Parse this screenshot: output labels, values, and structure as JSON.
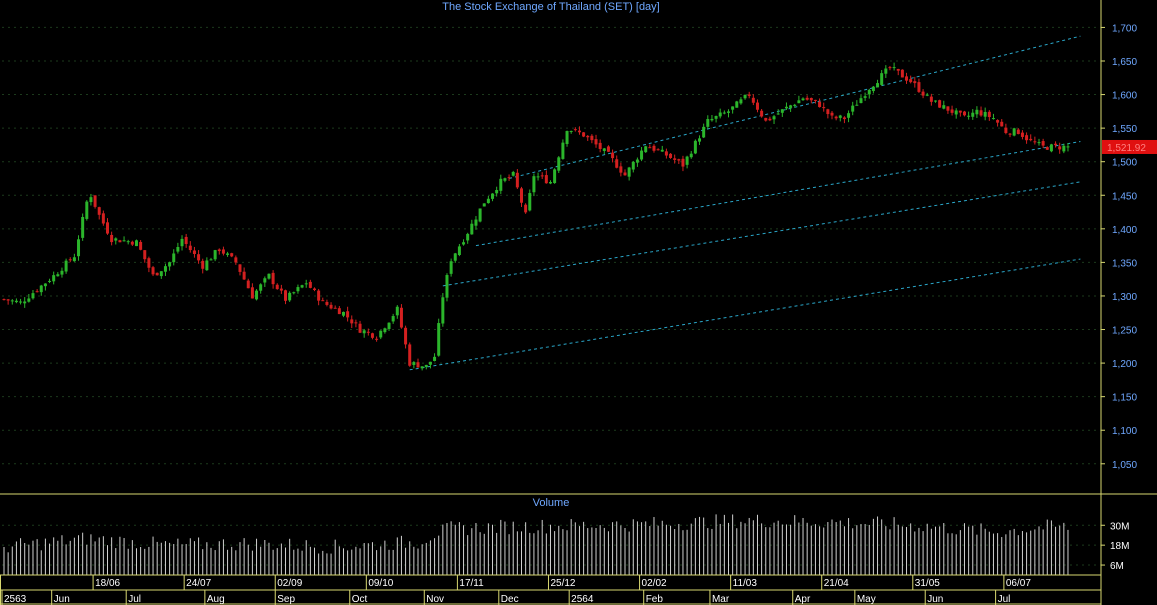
{
  "colors": {
    "background": "#000000",
    "axis_line": "#d8d870",
    "grid": "#1c3a1c",
    "text": "#6fa8ff",
    "label_text": "#ffffff",
    "up": "#2bb52b",
    "down": "#d42020",
    "channel": "#2aa6c8",
    "price_tag": "#e01010",
    "volume_bar": "#d0d0d0"
  },
  "chart_data": [
    {
      "type": "candlestick",
      "title": "The Stock Exchange of Thailand (SET) [day]",
      "ylim": [
        1005,
        1720
      ],
      "yticks": [
        1050,
        1100,
        1150,
        1200,
        1250,
        1300,
        1350,
        1400,
        1450,
        1500,
        1550,
        1600,
        1650,
        1700
      ],
      "ytick_labels": [
        "1,050",
        "1,100",
        "1,150",
        "1,200",
        "1,250",
        "1,300",
        "1,350",
        "1,400",
        "1,450",
        "1,500",
        "1,550",
        "1,600",
        "1,650",
        "1,700"
      ],
      "last_price": 1521.92,
      "last_price_label": "1,521.92",
      "n_days": 258,
      "close_anchors": [
        [
          0,
          1295
        ],
        [
          4,
          1290
        ],
        [
          12,
          1330
        ],
        [
          17,
          1360
        ],
        [
          20,
          1440
        ],
        [
          21,
          1450
        ],
        [
          23,
          1420
        ],
        [
          26,
          1385
        ],
        [
          32,
          1380
        ],
        [
          36,
          1330
        ],
        [
          40,
          1350
        ],
        [
          43,
          1385
        ],
        [
          48,
          1345
        ],
        [
          52,
          1370
        ],
        [
          56,
          1350
        ],
        [
          60,
          1300
        ],
        [
          64,
          1330
        ],
        [
          68,
          1295
        ],
        [
          73,
          1320
        ],
        [
          77,
          1290
        ],
        [
          82,
          1275
        ],
        [
          86,
          1250
        ],
        [
          90,
          1240
        ],
        [
          95,
          1280
        ],
        [
          98,
          1200
        ],
        [
          102,
          1195
        ],
        [
          104,
          1210
        ],
        [
          106,
          1300
        ],
        [
          108,
          1355
        ],
        [
          112,
          1395
        ],
        [
          116,
          1440
        ],
        [
          120,
          1470
        ],
        [
          123,
          1480
        ],
        [
          126,
          1420
        ],
        [
          128,
          1480
        ],
        [
          132,
          1470
        ],
        [
          136,
          1550
        ],
        [
          140,
          1540
        ],
        [
          146,
          1510
        ],
        [
          150,
          1480
        ],
        [
          155,
          1525
        ],
        [
          160,
          1510
        ],
        [
          164,
          1495
        ],
        [
          170,
          1560
        ],
        [
          175,
          1575
        ],
        [
          180,
          1600
        ],
        [
          184,
          1560
        ],
        [
          189,
          1580
        ],
        [
          193,
          1595
        ],
        [
          197,
          1585
        ],
        [
          200,
          1565
        ],
        [
          203,
          1565
        ],
        [
          209,
          1610
        ],
        [
          214,
          1640
        ],
        [
          219,
          1620
        ],
        [
          224,
          1590
        ],
        [
          229,
          1575
        ],
        [
          232,
          1565
        ],
        [
          235,
          1575
        ],
        [
          239,
          1565
        ],
        [
          242,
          1545
        ],
        [
          245,
          1545
        ],
        [
          248,
          1530
        ],
        [
          251,
          1522
        ]
      ],
      "channel_lines": [
        {
          "from": [
            1,
            1190
          ],
          "to": [
            260,
            1355
          ]
        },
        {
          "from": [
            10,
            1315
          ],
          "to": [
            260,
            1470
          ]
        },
        {
          "from": [
            38,
            1375
          ],
          "to": [
            260,
            1530
          ]
        },
        {
          "from": [
            37,
            1475
          ],
          "to": [
            260,
            1687
          ]
        }
      ]
    },
    {
      "type": "bar",
      "title": "Volume",
      "ylim": [
        0,
        38
      ],
      "yticks": [
        6,
        18,
        30
      ],
      "ytick_labels": [
        "6M",
        "18M",
        "30M"
      ],
      "volume_anchors": [
        [
          0,
          17
        ],
        [
          20,
          22
        ],
        [
          40,
          18
        ],
        [
          60,
          19
        ],
        [
          80,
          17
        ],
        [
          100,
          20
        ],
        [
          104,
          25
        ],
        [
          108,
          28
        ],
        [
          120,
          29
        ],
        [
          140,
          30
        ],
        [
          160,
          31
        ],
        [
          180,
          33
        ],
        [
          200,
          32
        ],
        [
          220,
          30
        ],
        [
          240,
          26
        ],
        [
          251,
          29
        ]
      ]
    }
  ],
  "x_axis": {
    "date_labels": [
      {
        "text": "18/06",
        "day": 22
      },
      {
        "text": "24/07",
        "day": 44
      },
      {
        "text": "02/09",
        "day": 66
      },
      {
        "text": "09/10",
        "day": 88
      },
      {
        "text": "17/11",
        "day": 110
      },
      {
        "text": "25/12",
        "day": 132
      },
      {
        "text": "02/02",
        "day": 154
      },
      {
        "text": "11/03",
        "day": 176
      },
      {
        "text": "21/04",
        "day": 198
      },
      {
        "text": "31/05",
        "day": 220
      },
      {
        "text": "06/07",
        "day": 242
      }
    ],
    "month_labels": [
      {
        "text": "2563",
        "day": 0
      },
      {
        "text": "Jun",
        "day": 12
      },
      {
        "text": "Jul",
        "day": 30
      },
      {
        "text": "Aug",
        "day": 49
      },
      {
        "text": "Sep",
        "day": 66
      },
      {
        "text": "Oct",
        "day": 84
      },
      {
        "text": "Nov",
        "day": 102
      },
      {
        "text": "Dec",
        "day": 120
      },
      {
        "text": "2564",
        "day": 137
      },
      {
        "text": "Feb",
        "day": 155
      },
      {
        "text": "Mar",
        "day": 171
      },
      {
        "text": "Apr",
        "day": 191
      },
      {
        "text": "May",
        "day": 206
      },
      {
        "text": "Jun",
        "day": 223
      },
      {
        "text": "Jul",
        "day": 240
      }
    ]
  }
}
